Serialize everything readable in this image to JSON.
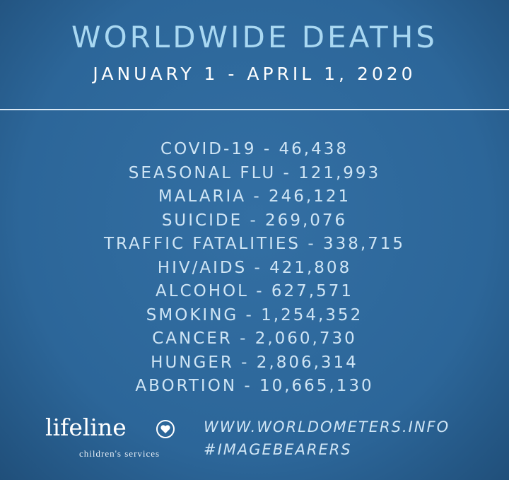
{
  "header": {
    "title": "WORLDWIDE DEATHS",
    "subtitle": "JANUARY 1 - APRIL 1, 2020"
  },
  "items": [
    "COVID-19 - 46,438",
    "SEASONAL FLU - 121,993",
    "MALARIA - 246,121",
    "SUICIDE - 269,076",
    "TRAFFIC FATALITIES - 338,715",
    "HIV/AIDS - 421,808",
    "ALCOHOL - 627,571",
    "SMOKING - 1,254,352",
    "CANCER - 2,060,730",
    "HUNGER - 2,806,314",
    "ABORTION - 10,665,130"
  ],
  "footer": {
    "logo": "lifeline",
    "logo_tagline": "children's services",
    "source": "WWW.WORLDOMETERS.INFO",
    "hashtag": "#IMAGEBEARERS"
  }
}
